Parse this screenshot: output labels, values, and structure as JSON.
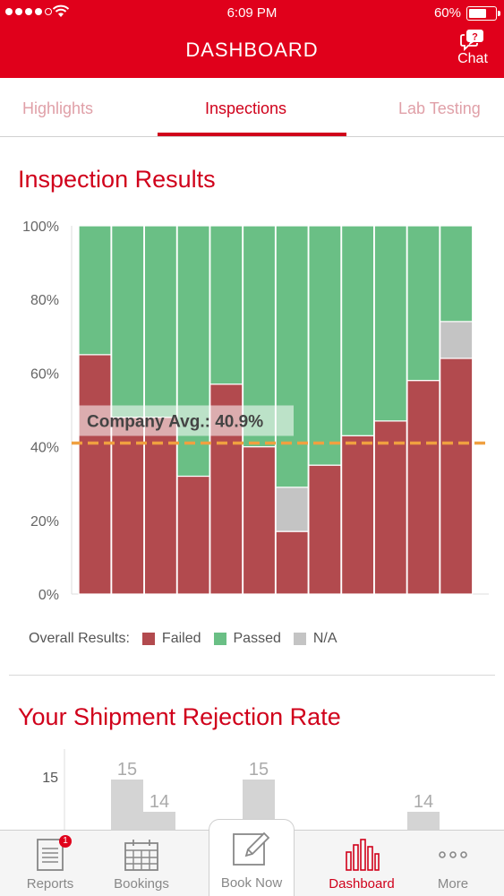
{
  "status_bar": {
    "time": "6:09 PM",
    "battery": "60%",
    "battery_level": 0.6
  },
  "header": {
    "title": "DASHBOARD",
    "chat_label": "Chat",
    "chat_icon": "chat-bubble-question-icon"
  },
  "tabs": [
    {
      "label": "Highlights",
      "active": false
    },
    {
      "label": "Inspections",
      "active": true
    },
    {
      "label": "Lab Testing",
      "active": false
    }
  ],
  "inspection": {
    "title": "Inspection Results",
    "legend_label": "Overall Results:",
    "legend": [
      {
        "name": "Failed",
        "color": "#b24a4e"
      },
      {
        "name": "Passed",
        "color": "#6abf85"
      },
      {
        "name": "N/A",
        "color": "#c4c4c4"
      }
    ]
  },
  "shipment": {
    "title": "Your Shipment Rejection Rate"
  },
  "chart_data": [
    {
      "type": "bar",
      "stacked": true,
      "title": "Inspection Results",
      "yticks": [
        "0%",
        "20%",
        "40%",
        "60%",
        "80%",
        "100%"
      ],
      "ylim": [
        0,
        100
      ],
      "legend_label": "Overall Results:",
      "series": [
        {
          "name": "Failed",
          "color": "#b24a4e",
          "values": [
            65,
            48,
            48,
            32,
            57,
            40,
            17,
            35,
            43,
            47,
            58,
            64
          ]
        },
        {
          "name": "N/A",
          "color": "#c4c4c4",
          "values": [
            0,
            0,
            0,
            0,
            0,
            0,
            12,
            0,
            0,
            0,
            0,
            10
          ]
        },
        {
          "name": "Passed",
          "color": "#6abf85",
          "values": [
            35,
            52,
            52,
            68,
            43,
            60,
            71,
            65,
            57,
            53,
            42,
            26
          ]
        }
      ],
      "reference_line": {
        "label": "Company Avg.: 40.9%",
        "value": 41,
        "color": "#f0a040"
      }
    },
    {
      "type": "bar",
      "title": "Your Shipment Rejection Rate",
      "yticks": [
        "15"
      ],
      "bars": [
        {
          "value": 15,
          "label": "15"
        },
        {
          "value": 14,
          "label": "14"
        },
        {
          "value": 15,
          "label": "15"
        },
        {
          "value": 14,
          "label": "14"
        }
      ]
    }
  ],
  "tabbar": {
    "items": [
      {
        "label": "Reports",
        "icon": "document-icon",
        "badge": "1"
      },
      {
        "label": "Bookings",
        "icon": "calendar-icon"
      },
      {
        "label": "Book Now",
        "icon": "edit-pencil-icon"
      },
      {
        "label": "Dashboard",
        "icon": "bar-chart-icon",
        "active": true
      },
      {
        "label": "More",
        "icon": "more-dots-icon"
      }
    ]
  }
}
